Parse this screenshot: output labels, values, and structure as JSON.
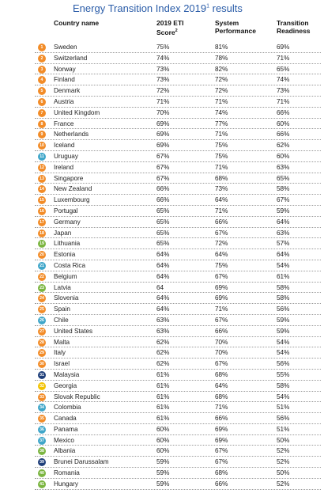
{
  "title": {
    "main": "Energy Transition Index 2019",
    "sup": "1",
    "suffix": " results"
  },
  "headers": {
    "country": "Country name",
    "eti_line1": "2019 ETI",
    "eti_line2": "Score",
    "eti_sup": "2",
    "sys_line1": "System",
    "sys_line2": "Performance",
    "trans_line1": "Transition",
    "trans_line2": "Readiness"
  },
  "colors": {
    "orange": "#f28c28",
    "teal": "#3fa6c9",
    "green": "#7bb540",
    "navy": "#1f3f7a",
    "yellow": "#f2c200"
  },
  "rows": [
    {
      "rank": "1",
      "country": "Sweden",
      "eti": "75%",
      "sys": "81%",
      "trans": "69%",
      "color": "#f28c28"
    },
    {
      "rank": "2",
      "country": "Switzerland",
      "eti": "74%",
      "sys": "78%",
      "trans": "71%",
      "color": "#f28c28"
    },
    {
      "rank": "3",
      "country": "Norway",
      "eti": "73%",
      "sys": "82%",
      "trans": "65%",
      "color": "#f28c28"
    },
    {
      "rank": "4",
      "country": "Finland",
      "eti": "73%",
      "sys": "72%",
      "trans": "74%",
      "color": "#f28c28"
    },
    {
      "rank": "5",
      "country": "Denmark",
      "eti": "72%",
      "sys": "72%",
      "trans": "73%",
      "color": "#f28c28"
    },
    {
      "rank": "6",
      "country": "Austria",
      "eti": "71%",
      "sys": "71%",
      "trans": "71%",
      "color": "#f28c28"
    },
    {
      "rank": "7",
      "country": "United Kingdom",
      "eti": "70%",
      "sys": "74%",
      "trans": "66%",
      "color": "#f28c28"
    },
    {
      "rank": "8",
      "country": "France",
      "eti": "69%",
      "sys": "77%",
      "trans": "60%",
      "color": "#f28c28"
    },
    {
      "rank": "9",
      "country": "Netherlands",
      "eti": "69%",
      "sys": "71%",
      "trans": "66%",
      "color": "#f28c28"
    },
    {
      "rank": "10",
      "country": "Iceland",
      "eti": "69%",
      "sys": "75%",
      "trans": "62%",
      "color": "#f28c28"
    },
    {
      "rank": "11",
      "country": "Uruguay",
      "eti": "67%",
      "sys": "75%",
      "trans": "60%",
      "color": "#3fa6c9"
    },
    {
      "rank": "12",
      "country": "Ireland",
      "eti": "67%",
      "sys": "71%",
      "trans": "63%",
      "color": "#f28c28"
    },
    {
      "rank": "13",
      "country": "Singapore",
      "eti": "67%",
      "sys": "68%",
      "trans": "65%",
      "color": "#f28c28"
    },
    {
      "rank": "14",
      "country": "New Zealand",
      "eti": "66%",
      "sys": "73%",
      "trans": "58%",
      "color": "#f28c28"
    },
    {
      "rank": "15",
      "country": "Luxembourg",
      "eti": "66%",
      "sys": "64%",
      "trans": "67%",
      "color": "#f28c28"
    },
    {
      "rank": "16",
      "country": "Portugal",
      "eti": "65%",
      "sys": "71%",
      "trans": "59%",
      "color": "#f28c28"
    },
    {
      "rank": "17",
      "country": "Germany",
      "eti": "65%",
      "sys": "66%",
      "trans": "64%",
      "color": "#f28c28"
    },
    {
      "rank": "18",
      "country": "Japan",
      "eti": "65%",
      "sys": "67%",
      "trans": "63%",
      "color": "#f28c28"
    },
    {
      "rank": "19",
      "country": "Lithuania",
      "eti": "65%",
      "sys": "72%",
      "trans": "57%",
      "color": "#7bb540"
    },
    {
      "rank": "20",
      "country": "Estonia",
      "eti": "64%",
      "sys": "64%",
      "trans": "64%",
      "color": "#f28c28"
    },
    {
      "rank": "21",
      "country": "Costa Rica",
      "eti": "64%",
      "sys": "75%",
      "trans": "54%",
      "color": "#3fa6c9"
    },
    {
      "rank": "22",
      "country": "Belgium",
      "eti": "64%",
      "sys": "67%",
      "trans": "61%",
      "color": "#f28c28"
    },
    {
      "rank": "23",
      "country": "Latvia",
      "eti": "64",
      "sys": "69%",
      "trans": "58%",
      "color": "#7bb540"
    },
    {
      "rank": "24",
      "country": "Slovenia",
      "eti": "64%",
      "sys": "69%",
      "trans": "58%",
      "color": "#f28c28"
    },
    {
      "rank": "25",
      "country": "Spain",
      "eti": "64%",
      "sys": "71%",
      "trans": "56%",
      "color": "#f28c28"
    },
    {
      "rank": "26",
      "country": "Chile",
      "eti": "63%",
      "sys": "67%",
      "trans": "59%",
      "color": "#3fa6c9"
    },
    {
      "rank": "27",
      "country": "United States",
      "eti": "63%",
      "sys": "66%",
      "trans": "59%",
      "color": "#f28c28"
    },
    {
      "rank": "28",
      "country": "Malta",
      "eti": "62%",
      "sys": "70%",
      "trans": "54%",
      "color": "#f28c28"
    },
    {
      "rank": "29",
      "country": "Italy",
      "eti": "62%",
      "sys": "70%",
      "trans": "54%",
      "color": "#f28c28"
    },
    {
      "rank": "30",
      "country": "Israel",
      "eti": "62%",
      "sys": "67%",
      "trans": "56%",
      "color": "#f28c28"
    },
    {
      "rank": "31",
      "country": "Malaysia",
      "eti": "61%",
      "sys": "68%",
      "trans": "55%",
      "color": "#1f3f7a"
    },
    {
      "rank": "32",
      "country": "Georgia",
      "eti": "61%",
      "sys": "64%",
      "trans": "58%",
      "color": "#f2c200"
    },
    {
      "rank": "33",
      "country": "Slovak Republic",
      "eti": "61%",
      "sys": "68%",
      "trans": "54%",
      "color": "#f28c28"
    },
    {
      "rank": "34",
      "country": "Colombia",
      "eti": "61%",
      "sys": "71%",
      "trans": "51%",
      "color": "#3fa6c9"
    },
    {
      "rank": "35",
      "country": "Canada",
      "eti": "61%",
      "sys": "66%",
      "trans": "56%",
      "color": "#f28c28"
    },
    {
      "rank": "36",
      "country": "Panama",
      "eti": "60%",
      "sys": "69%",
      "trans": "51%",
      "color": "#3fa6c9"
    },
    {
      "rank": "37",
      "country": "Mexico",
      "eti": "60%",
      "sys": "69%",
      "trans": "50%",
      "color": "#3fa6c9"
    },
    {
      "rank": "38",
      "country": "Albania",
      "eti": "60%",
      "sys": "67%",
      "trans": "52%",
      "color": "#7bb540"
    },
    {
      "rank": "39",
      "country": "Brunei Darussalam",
      "eti": "59%",
      "sys": "67%",
      "trans": "52%",
      "color": "#1f3f7a"
    },
    {
      "rank": "40",
      "country": "Romania",
      "eti": "59%",
      "sys": "68%",
      "trans": "50%",
      "color": "#7bb540"
    },
    {
      "rank": "41",
      "country": "Hungary",
      "eti": "59%",
      "sys": "66%",
      "trans": "52%",
      "color": "#7bb540"
    }
  ]
}
